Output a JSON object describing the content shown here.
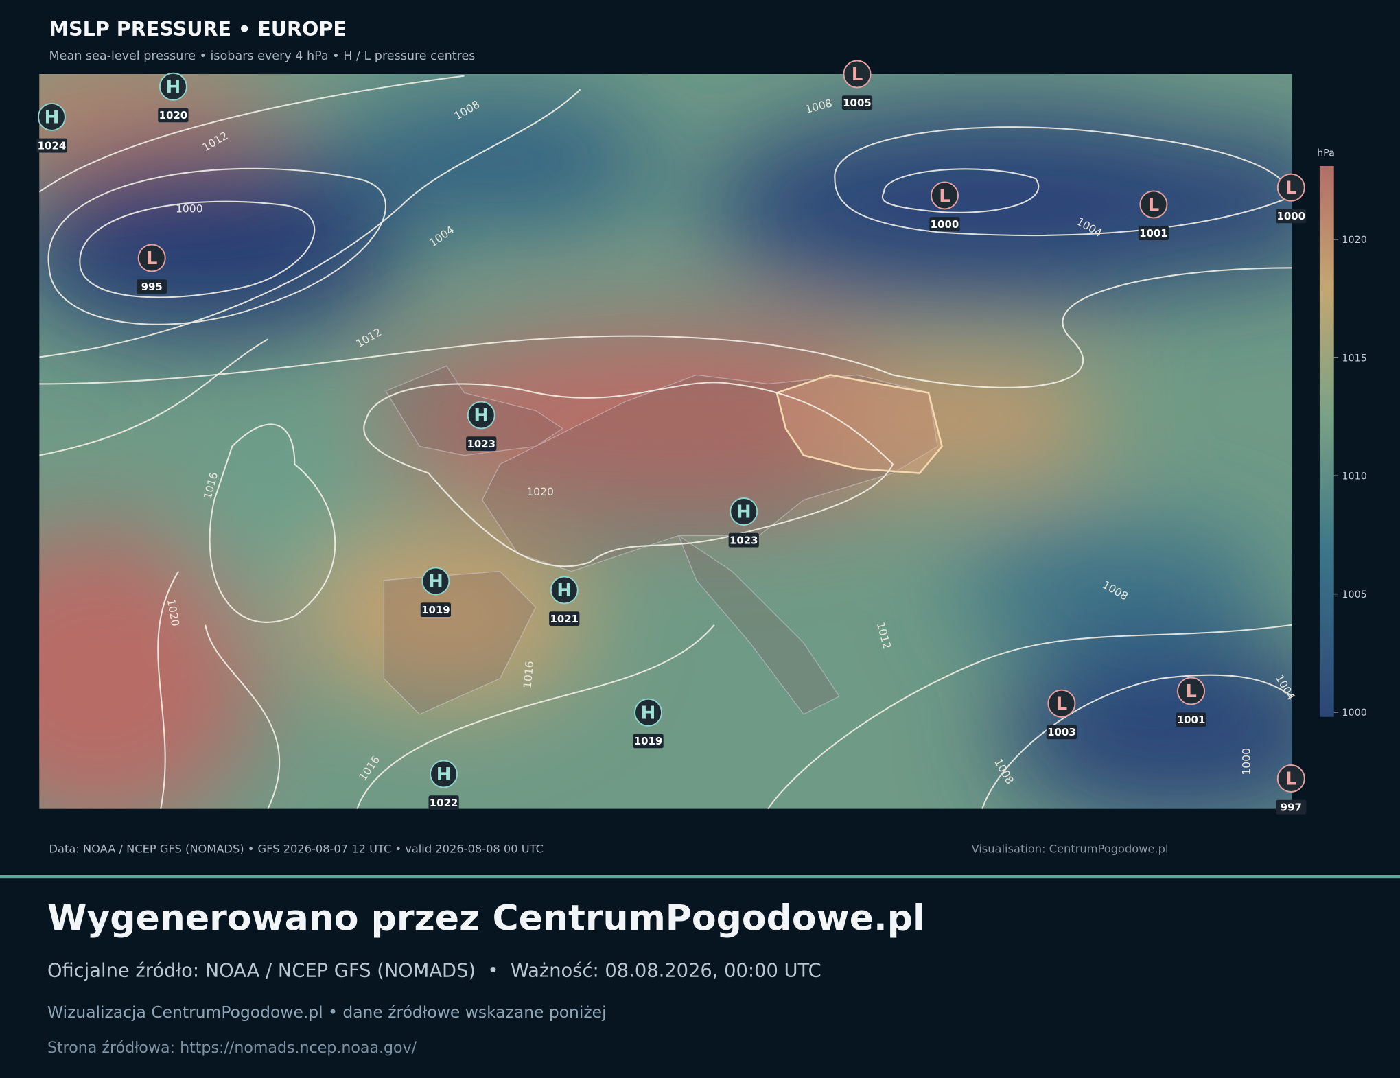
{
  "header": {
    "title": "MSLP PRESSURE • EUROPE",
    "subtitle": "Mean sea-level pressure • isobars every 4 hPa • H / L pressure centres"
  },
  "map": {
    "centres": [
      {
        "kind": "H",
        "value": 1024
      },
      {
        "kind": "H",
        "value": 1020
      },
      {
        "kind": "L",
        "value": 1005
      },
      {
        "kind": "L",
        "value": 995
      },
      {
        "kind": "L",
        "value": 1000
      },
      {
        "kind": "L",
        "value": 1001
      },
      {
        "kind": "L",
        "value": 1000
      },
      {
        "kind": "H",
        "value": 1023
      },
      {
        "kind": "H",
        "value": 1023
      },
      {
        "kind": "H",
        "value": 1019
      },
      {
        "kind": "H",
        "value": 1021
      },
      {
        "kind": "H",
        "value": 1019
      },
      {
        "kind": "H",
        "value": 1022
      },
      {
        "kind": "L",
        "value": 1003
      },
      {
        "kind": "L",
        "value": 1001
      },
      {
        "kind": "L",
        "value": 997
      }
    ],
    "isobar_labels": [
      1008,
      1012,
      1000,
      1004,
      1012,
      1016,
      1020,
      1020,
      1016,
      1016,
      1008,
      1004,
      1008,
      1012,
      1008,
      1000,
      1004
    ],
    "colorbar": {
      "label": "hPa",
      "range": [
        999.8,
        1023.1
      ],
      "ticks": [
        1000,
        1005,
        1010,
        1015,
        1020
      ]
    }
  },
  "footer": {
    "data_note": "Data: NOAA / NCEP GFS (NOMADS) • GFS 2026-08-07 12 UTC • valid 2026-08-08 00 UTC",
    "visualisation": "Visualisation: CentrumPogodowe.pl"
  },
  "banner": {
    "heading": "Wygenerowano przez CentrumPogodowe.pl",
    "source": "Oficjalne źródło: NOAA / NCEP GFS (NOMADS)  •  Ważność: 08.08.2026, 00:00 UTC",
    "visualisation_note": "Wizualizacja CentrumPogodowe.pl • dane źródłowe wskazane poniżej",
    "source_page": "Strona źródłowa: https://nomads.ncep.noaa.gov/"
  }
}
